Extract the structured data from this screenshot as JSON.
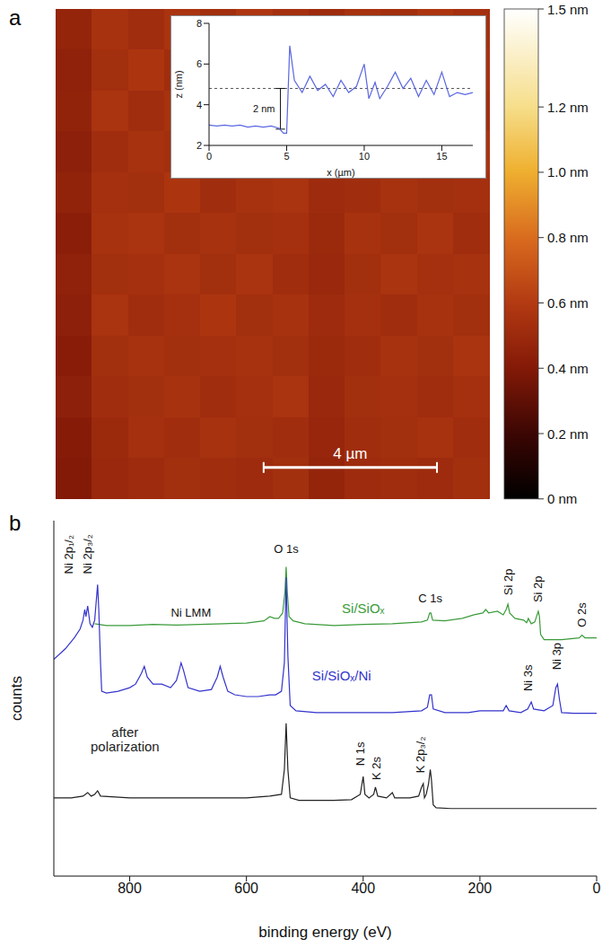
{
  "chart_data": [
    {
      "type": "heatmap",
      "panel": "a",
      "xlim": [
        0,
        10
      ],
      "ylim": [
        0,
        11.3
      ],
      "scale_bar": {
        "label": "4 µm",
        "length": 4
      },
      "colorbar": {
        "range": [
          0,
          1.5
        ],
        "ticks": [
          {
            "value": 0,
            "label": "0 nm"
          },
          {
            "value": 0.2,
            "label": "0.2 nm"
          },
          {
            "value": 0.4,
            "label": "0.4 nm"
          },
          {
            "value": 0.6,
            "label": "0.6 nm"
          },
          {
            "value": 0.8,
            "label": "0.8 nm"
          },
          {
            "value": 1.0,
            "label": "1.0 nm"
          },
          {
            "value": 1.2,
            "label": "1.2 nm"
          },
          {
            "value": 1.5,
            "label": "1.5 nm"
          }
        ]
      },
      "cells": [
        [
          0.47,
          0.55,
          0.52,
          0.56,
          0.53,
          0.58,
          0.54,
          0.51,
          0.55,
          0.53,
          0.57,
          0.54
        ],
        [
          0.45,
          0.53,
          0.57,
          0.52,
          0.55,
          0.53,
          0.56,
          0.5,
          0.53,
          0.56,
          0.52,
          0.55
        ],
        [
          0.46,
          0.56,
          0.52,
          0.55,
          0.58,
          0.52,
          0.55,
          0.52,
          0.5,
          0.54,
          0.57,
          0.53
        ],
        [
          0.44,
          0.52,
          0.55,
          0.53,
          0.54,
          0.57,
          0.53,
          0.49,
          0.54,
          0.52,
          0.55,
          0.56
        ],
        [
          0.46,
          0.54,
          0.53,
          0.57,
          0.52,
          0.55,
          0.56,
          0.51,
          0.52,
          0.55,
          0.53,
          0.54
        ],
        [
          0.43,
          0.55,
          0.56,
          0.53,
          0.55,
          0.53,
          0.54,
          0.5,
          0.55,
          0.53,
          0.56,
          0.52
        ],
        [
          0.45,
          0.53,
          0.54,
          0.56,
          0.53,
          0.56,
          0.52,
          0.49,
          0.53,
          0.56,
          0.54,
          0.55
        ],
        [
          0.44,
          0.56,
          0.52,
          0.54,
          0.57,
          0.53,
          0.55,
          0.51,
          0.54,
          0.52,
          0.55,
          0.53
        ],
        [
          0.42,
          0.53,
          0.55,
          0.53,
          0.54,
          0.55,
          0.53,
          0.5,
          0.52,
          0.55,
          0.53,
          0.56
        ],
        [
          0.44,
          0.52,
          0.53,
          0.55,
          0.52,
          0.54,
          0.56,
          0.49,
          0.53,
          0.54,
          0.52,
          0.54
        ],
        [
          0.41,
          0.5,
          0.54,
          0.52,
          0.55,
          0.53,
          0.52,
          0.48,
          0.52,
          0.53,
          0.55,
          0.52
        ],
        [
          0.4,
          0.49,
          0.51,
          0.53,
          0.52,
          0.51,
          0.53,
          0.47,
          0.51,
          0.52,
          0.51,
          0.53
        ]
      ]
    },
    {
      "type": "line",
      "x_label": "x (µm)",
      "y_label": "z (nm)",
      "color": "#5a66e0",
      "xlim": [
        0,
        17
      ],
      "ylim": [
        2,
        8
      ],
      "xticks": [
        0,
        5,
        10,
        15
      ],
      "yticks": [
        2,
        4,
        6,
        8
      ],
      "reference_line": 4.8,
      "annotations": [
        {
          "text": "2 nm",
          "x": 4.6,
          "y_from": 2.8,
          "y_to": 4.8
        }
      ],
      "x": [
        0,
        0.5,
        1,
        1.5,
        2,
        2.5,
        3,
        3.5,
        4,
        4.5,
        4.8,
        5,
        5.2,
        5.5,
        6,
        6.5,
        7,
        7.5,
        8,
        8.5,
        9,
        9.5,
        10,
        10.3,
        10.7,
        11,
        11.5,
        12,
        12.5,
        13,
        13.5,
        14,
        14.5,
        15,
        15.5,
        16,
        16.5,
        17
      ],
      "values": [
        3.0,
        2.95,
        3.0,
        2.95,
        3.0,
        2.9,
        2.95,
        2.9,
        2.95,
        2.85,
        2.6,
        2.6,
        6.9,
        5.2,
        4.6,
        5.4,
        4.7,
        5.0,
        4.4,
        5.2,
        4.6,
        4.9,
        6.0,
        4.3,
        5.1,
        4.3,
        4.9,
        5.6,
        4.8,
        5.3,
        4.4,
        5.2,
        4.5,
        5.6,
        4.4,
        4.6,
        4.5,
        4.6
      ]
    },
    {
      "type": "line",
      "panel": "b",
      "x_label": "binding energy (eV)",
      "y_label": "counts",
      "xlim": [
        930,
        0
      ],
      "xticks": [
        800,
        600,
        400,
        200,
        0
      ],
      "ylim": [
        0,
        100
      ],
      "tick_labels": "x",
      "series": [
        {
          "name": "Si/SiOₓ",
          "color": "#3a9b3a",
          "label_x": 400,
          "label_y": 74,
          "x": [
            860,
            840,
            800,
            760,
            720,
            680,
            640,
            600,
            570,
            560,
            552,
            545,
            538,
            534,
            532,
            530,
            527,
            520,
            500,
            450,
            400,
            350,
            300,
            290,
            286,
            284,
            281,
            260,
            230,
            210,
            195,
            190,
            185,
            170,
            160,
            155,
            152,
            149,
            140,
            125,
            120,
            117,
            112,
            106,
            103,
            100,
            98,
            96,
            90,
            60,
            30,
            25,
            20,
            0
          ],
          "values": [
            71,
            70.5,
            70.5,
            70.8,
            70.6,
            70.8,
            71,
            71.2,
            71.8,
            73,
            72.5,
            72.5,
            74,
            80,
            87,
            80,
            73,
            71.8,
            71,
            70.5,
            70.8,
            71,
            71.5,
            72,
            74,
            74,
            72,
            71.8,
            72.5,
            73.5,
            74,
            75,
            74,
            74.5,
            73.5,
            75,
            76.5,
            74,
            72.5,
            72,
            71.3,
            72.5,
            71,
            71.5,
            73,
            74.5,
            73,
            68,
            66.5,
            66.5,
            67,
            67.8,
            67,
            67
          ]
        },
        {
          "name": "Si/SiOₓ/Ni",
          "color": "#3333cc",
          "label_x": 437,
          "label_y": 55,
          "x": [
            930,
            910,
            895,
            885,
            880,
            877,
            875,
            872,
            868,
            864,
            860,
            857,
            855,
            853,
            850,
            848,
            840,
            820,
            800,
            790,
            780,
            775,
            770,
            760,
            745,
            730,
            720,
            715,
            712,
            708,
            700,
            680,
            660,
            650,
            645,
            640,
            632,
            620,
            600,
            580,
            560,
            550,
            540,
            535,
            532,
            529,
            525,
            515,
            480,
            450,
            400,
            350,
            300,
            290,
            286,
            283,
            280,
            260,
            220,
            200,
            160,
            155,
            150,
            130,
            118,
            112,
            108,
            90,
            75,
            70,
            67,
            64,
            60,
            40,
            20,
            0
          ],
          "values": [
            61,
            64,
            67,
            69.5,
            72,
            75,
            73,
            76,
            71,
            70,
            72,
            78,
            82,
            75,
            60,
            52,
            51.5,
            52,
            53,
            54,
            57,
            59,
            56,
            54,
            54,
            53,
            55,
            58,
            60,
            58,
            53,
            52,
            52.5,
            56,
            59,
            56,
            52,
            51,
            50.5,
            50.5,
            51,
            51,
            52,
            60,
            84,
            62,
            48,
            46.5,
            46,
            46,
            46,
            46,
            46.5,
            47.5,
            51,
            51,
            47,
            46,
            46,
            46.5,
            46.5,
            48,
            46.5,
            46,
            47,
            49,
            47,
            46.5,
            48,
            53,
            54,
            50,
            46,
            45.8,
            45.8,
            45.8
          ]
        },
        {
          "name": "after polarization",
          "color": "#222222",
          "label_x": 808,
          "label_y": 35,
          "x": [
            930,
            900,
            880,
            872,
            866,
            860,
            855,
            850,
            800,
            700,
            600,
            560,
            540,
            535,
            532,
            529,
            525,
            510,
            450,
            420,
            405,
            402,
            400,
            397,
            390,
            382,
            379,
            375,
            360,
            350,
            346,
            320,
            305,
            300,
            297,
            295,
            292,
            288,
            285,
            283,
            280,
            275,
            250,
            200,
            150,
            100,
            50,
            0
          ],
          "values": [
            22,
            22,
            22.5,
            23.5,
            22.5,
            23,
            24,
            22.5,
            22,
            22,
            22,
            22.5,
            23,
            30,
            43,
            30,
            22,
            21.3,
            21.3,
            21.5,
            23,
            26,
            28,
            23,
            22,
            23,
            25,
            22.5,
            22,
            23.5,
            22,
            22,
            22.5,
            25,
            26,
            22,
            23,
            26,
            30,
            27,
            20,
            19.2,
            19,
            19,
            19,
            19,
            19,
            19
          ]
        }
      ],
      "annotations": [
        {
          "text": "Ni 2p₁/₂",
          "x": 905,
          "y": 85,
          "orientation": "vertical"
        },
        {
          "text": "Ni 2p₃/₂",
          "x": 872,
          "y": 85,
          "orientation": "vertical"
        },
        {
          "text": "Ni LMM",
          "x": 695,
          "y": 73
        },
        {
          "text": "O 1s",
          "x": 532,
          "y": 91
        },
        {
          "text": "C 1s",
          "x": 285,
          "y": 77
        },
        {
          "text": "Si 2p",
          "x": 152,
          "y": 79,
          "orientation": "vertical"
        },
        {
          "text": "Si 2p",
          "x": 100,
          "y": 77,
          "orientation": "vertical"
        },
        {
          "text": "O 2s",
          "x": 25,
          "y": 70,
          "orientation": "vertical"
        },
        {
          "text": "Ni 3s",
          "x": 118,
          "y": 52,
          "orientation": "vertical"
        },
        {
          "text": "Ni 3p",
          "x": 68,
          "y": 58,
          "orientation": "vertical"
        },
        {
          "text": "N 1s",
          "x": 405,
          "y": 31,
          "orientation": "vertical"
        },
        {
          "text": "K 2s",
          "x": 378,
          "y": 27,
          "orientation": "vertical"
        },
        {
          "text": "K 2p₃/₂",
          "x": 302,
          "y": 29,
          "orientation": "vertical"
        }
      ]
    }
  ]
}
